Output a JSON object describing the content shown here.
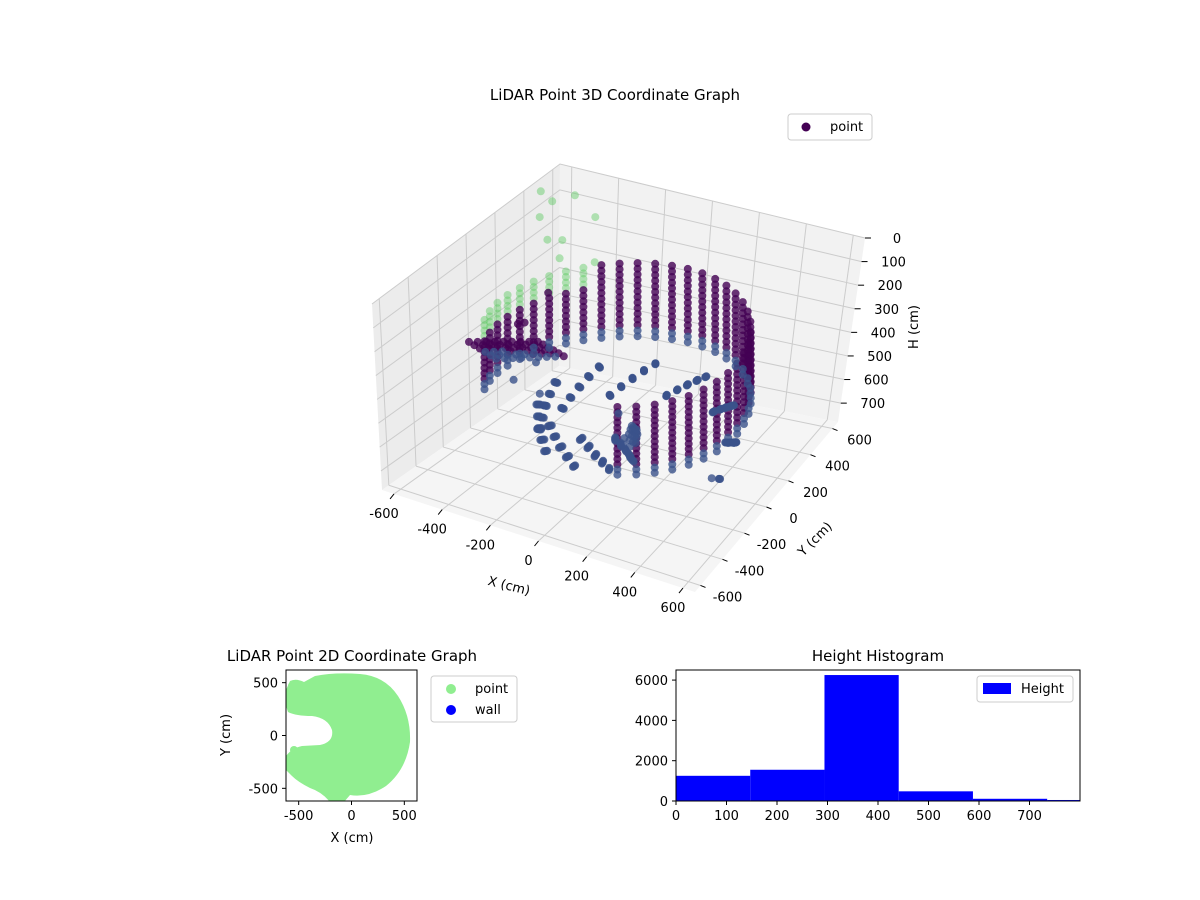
{
  "colors": {
    "point3d_dark": "#440154",
    "point3d_mid": "#3b528b",
    "point3d_light": "#5ec962",
    "point2d": "#90ee90",
    "wall": "#0000ff",
    "histogram": "#0000ff",
    "pane_left": "#ececec",
    "pane_right": "#f2f2f2",
    "floor": "#f5f5f5",
    "grid": "#cccccc"
  },
  "chart_data": [
    {
      "type": "scatter",
      "projection": "3d",
      "title": "LiDAR Point 3D Coordinate Graph",
      "xlabel": "X (cm)",
      "ylabel": "Y (cm)",
      "zlabel": "H (cm)",
      "xlim": [
        -650,
        650
      ],
      "ylim": [
        -650,
        650
      ],
      "zlim": [
        780,
        0
      ],
      "z_inverted": true,
      "x_ticks": [
        -600,
        -400,
        -200,
        0,
        200,
        400,
        600
      ],
      "y_ticks": [
        -600,
        -400,
        -200,
        0,
        200,
        400,
        600
      ],
      "z_ticks": [
        0,
        100,
        200,
        300,
        400,
        500,
        600,
        700
      ],
      "grid": true,
      "legend": "top-right",
      "series": [
        {
          "name": "point"
        }
      ]
    },
    {
      "type": "scatter",
      "title": "LiDAR Point 2D Coordinate Graph",
      "xlabel": "X (cm)",
      "ylabel": "Y (cm)",
      "xlim": [
        -620,
        620
      ],
      "ylim": [
        -620,
        620
      ],
      "x_ticks": [
        -500,
        0,
        500
      ],
      "y_ticks": [
        -500,
        0,
        500
      ],
      "legend": "outside-right",
      "series": [
        {
          "name": "point"
        },
        {
          "name": "wall"
        }
      ]
    },
    {
      "type": "bar",
      "title": "Height Histogram",
      "xlabel": "",
      "ylabel": "",
      "xlim": [
        0,
        800
      ],
      "ylim": [
        0,
        6500
      ],
      "x_ticks": [
        0,
        100,
        200,
        300,
        400,
        500,
        600,
        700
      ],
      "y_ticks": [
        0,
        2000,
        4000,
        6000
      ],
      "legend": "top-right",
      "series": [
        {
          "name": "Height"
        }
      ],
      "bins": [
        {
          "x0": 0,
          "x1": 147,
          "value": 1250
        },
        {
          "x0": 147,
          "x1": 294,
          "value": 1550
        },
        {
          "x0": 294,
          "x1": 441,
          "value": 6250
        },
        {
          "x0": 441,
          "x1": 588,
          "value": 480
        },
        {
          "x0": 588,
          "x1": 735,
          "value": 110
        },
        {
          "x0": 735,
          "x1": 800,
          "value": 50
        }
      ]
    }
  ]
}
